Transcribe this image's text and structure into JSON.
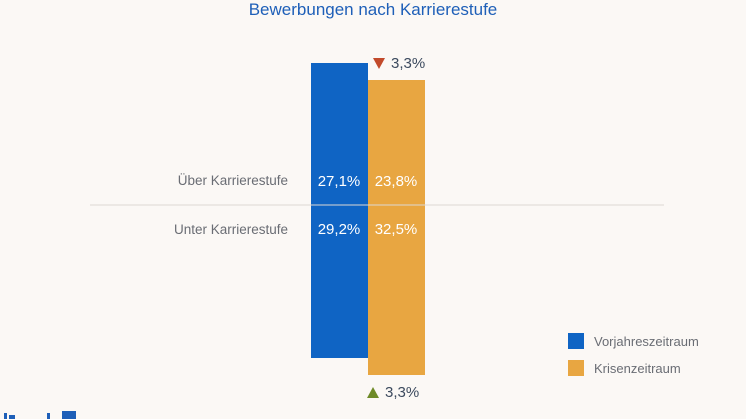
{
  "chart_data": {
    "type": "bar",
    "title": "Bewerbungen nach Karrierestufe",
    "rows": [
      "Über Karrierestufe",
      "Unter Karrierestufe"
    ],
    "series": [
      {
        "name": "Vorjahreszeitraum",
        "values": [
          27.1,
          29.2
        ],
        "labels": [
          "27,1%",
          "29,2%"
        ],
        "color": "#0f64c4"
      },
      {
        "name": "Krisenzeitraum",
        "values": [
          23.8,
          32.5
        ],
        "labels": [
          "23,8%",
          "32,5%"
        ],
        "color": "#e8a641"
      }
    ],
    "changes": [
      {
        "row": "Über Karrierestufe",
        "direction": "down",
        "label": "3,3%",
        "color": "#c24a2b"
      },
      {
        "row": "Unter Karrierestufe",
        "direction": "up",
        "label": "3,3%",
        "color": "#6e8a28"
      }
    ],
    "stacked": true,
    "percent_stacked": true,
    "legend_position": "bottom-right"
  }
}
